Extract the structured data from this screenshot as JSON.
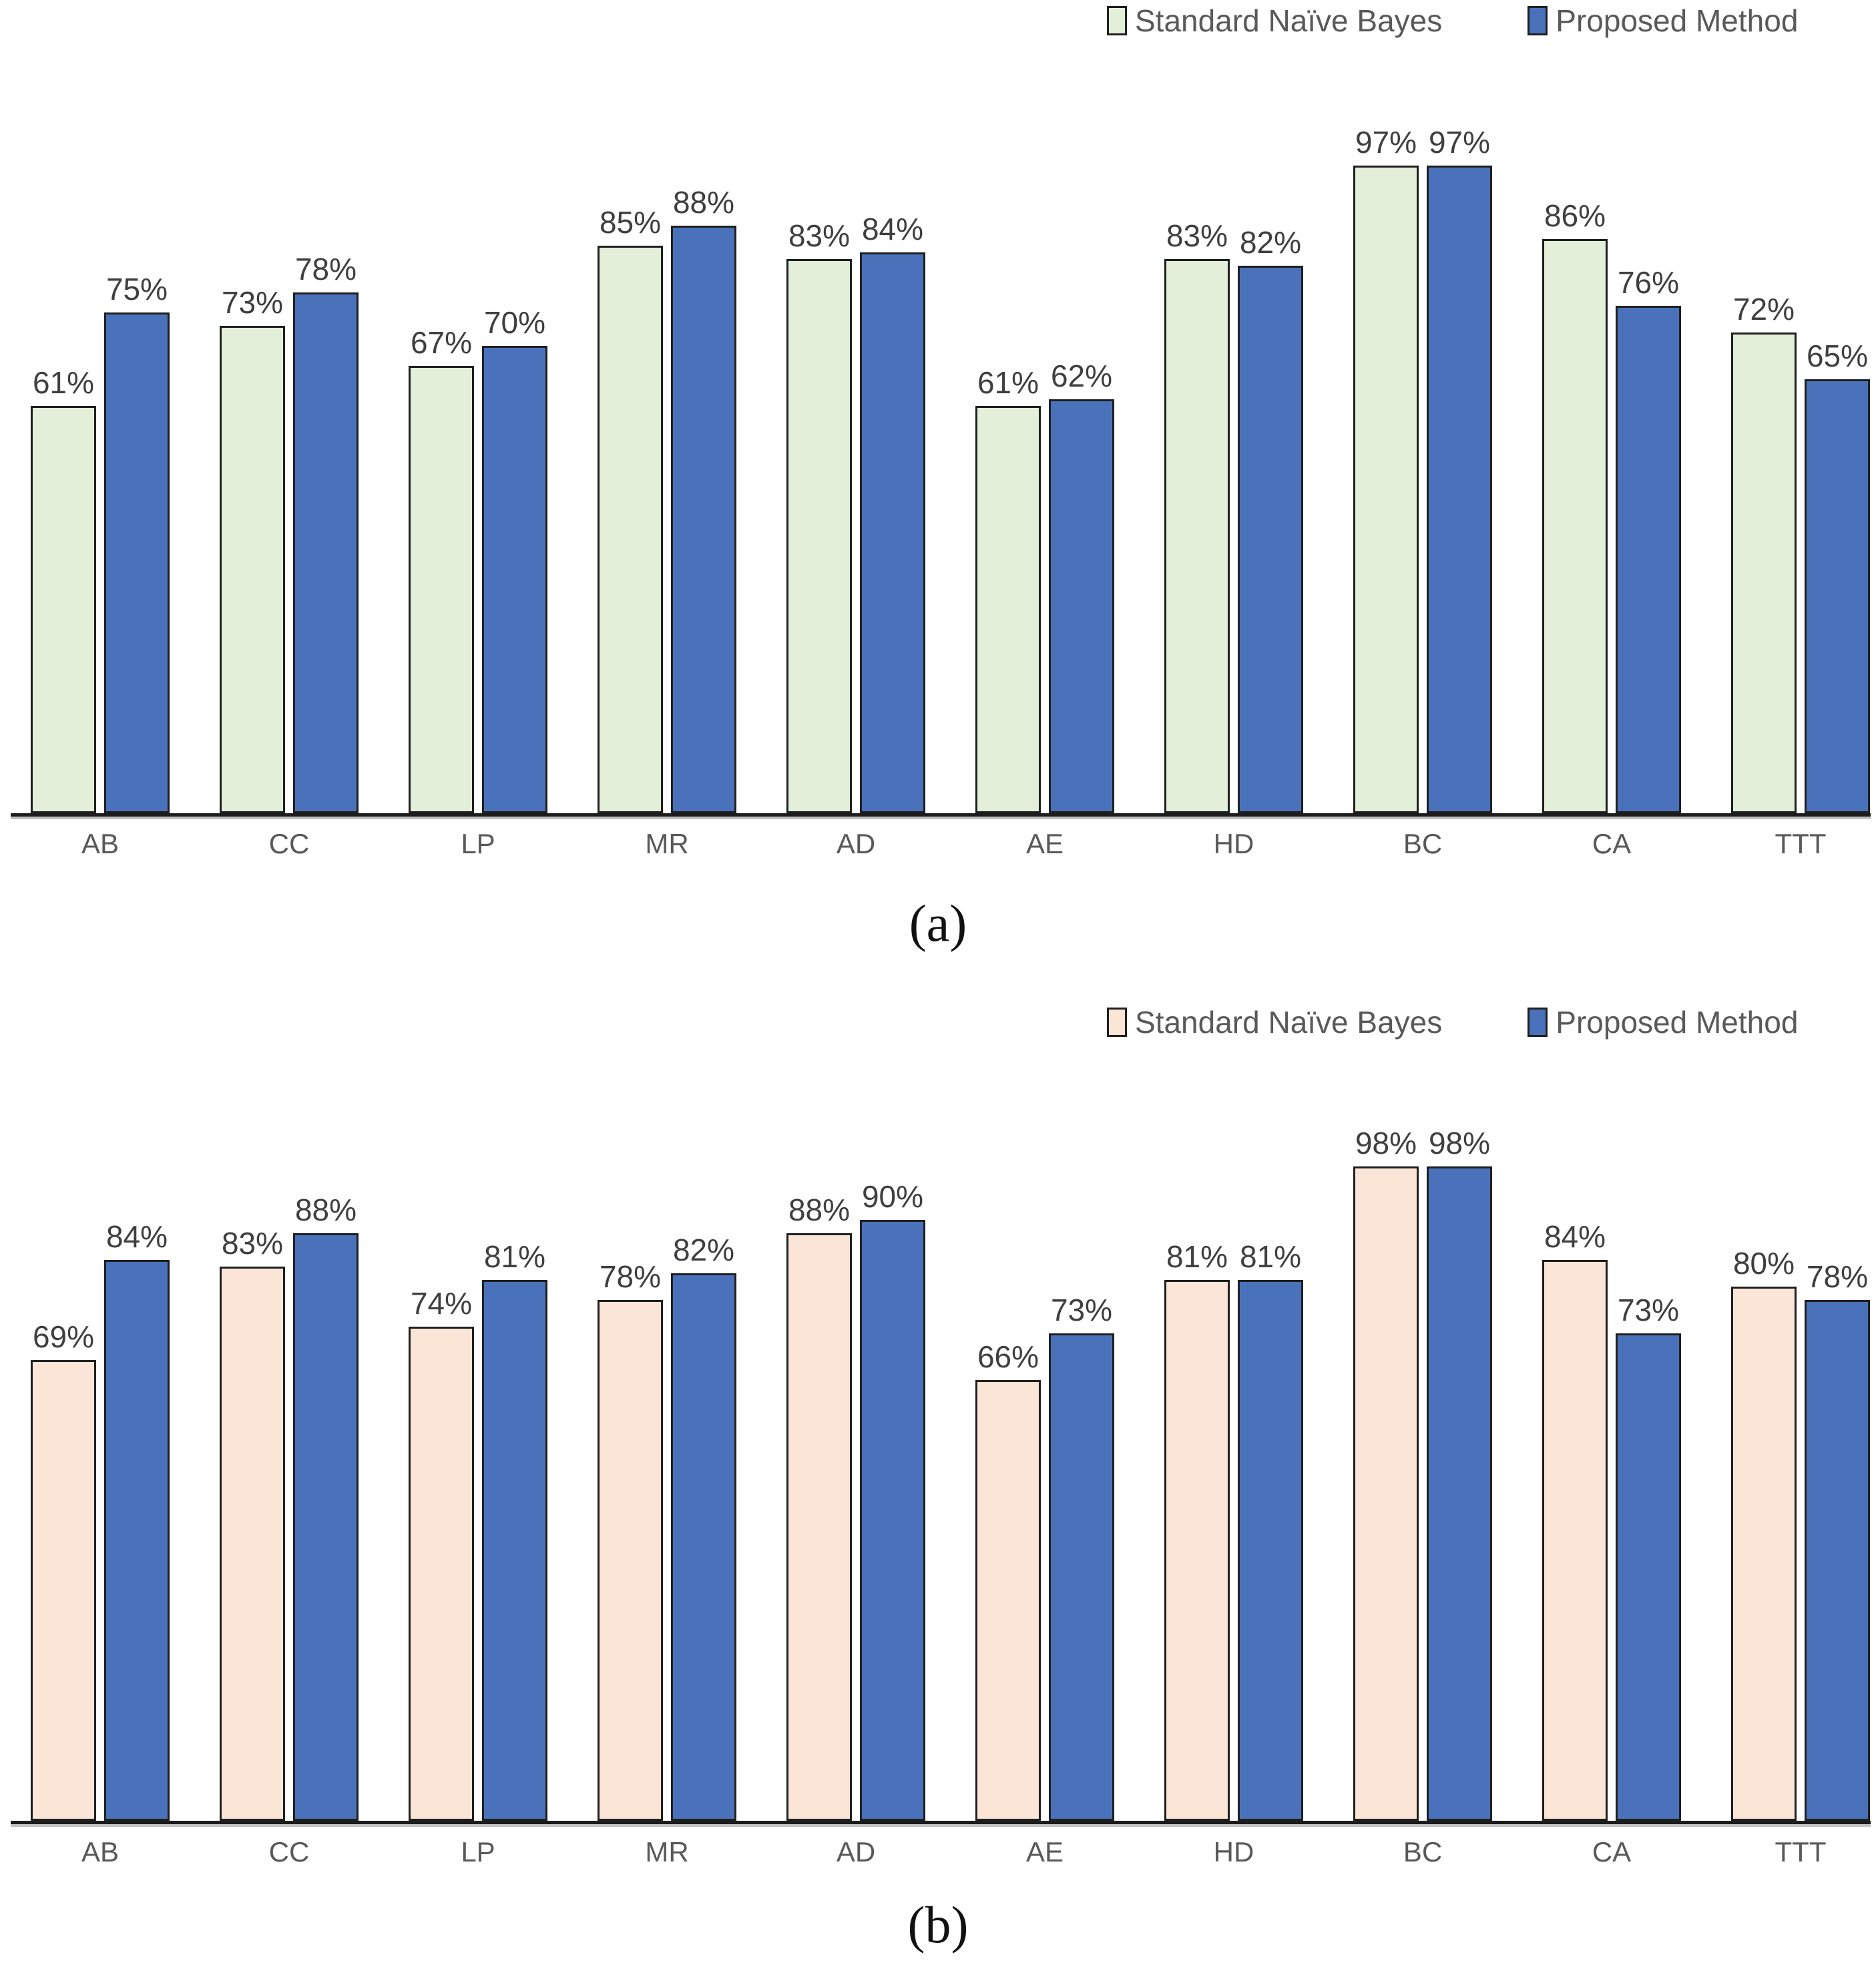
{
  "chart_data": [
    {
      "type": "bar",
      "panel": "(a)",
      "title": "",
      "xlabel": "",
      "ylabel": "",
      "ylim": [
        0,
        100
      ],
      "grid": false,
      "legend_position": "top-right",
      "value_suffix": "%",
      "categories": [
        "AB",
        "CC",
        "LP",
        "MR",
        "AD",
        "AE",
        "HD",
        "BC",
        "CA",
        "TTT"
      ],
      "series": [
        {
          "name": "Standard Naïve Bayes",
          "color": "#e3efd9",
          "values": [
            61,
            73,
            67,
            85,
            83,
            61,
            83,
            97,
            86,
            72
          ]
        },
        {
          "name": "Proposed Method",
          "color": "#4a72ba",
          "values": [
            75,
            78,
            70,
            88,
            84,
            62,
            82,
            97,
            76,
            65
          ]
        }
      ]
    },
    {
      "type": "bar",
      "panel": "(b)",
      "title": "",
      "xlabel": "",
      "ylabel": "",
      "ylim": [
        0,
        100
      ],
      "grid": false,
      "legend_position": "top-right",
      "value_suffix": "%",
      "categories": [
        "AB",
        "CC",
        "LP",
        "MR",
        "AD",
        "AE",
        "HD",
        "BC",
        "CA",
        "TTT"
      ],
      "series": [
        {
          "name": "Standard Naïve Bayes",
          "color": "#fbe5d7",
          "values": [
            69,
            83,
            74,
            78,
            88,
            66,
            81,
            98,
            84,
            80
          ]
        },
        {
          "name": "Proposed Method",
          "color": "#4a72ba",
          "values": [
            84,
            88,
            81,
            82,
            90,
            73,
            81,
            98,
            73,
            78
          ]
        }
      ]
    }
  ],
  "styles": {
    "axis_color": "#1c1c1c",
    "bar_border_color": "#1f1f1f",
    "value_label_color": "#3f3f3f",
    "category_label_color": "#595959",
    "legend_text_color": "#595959",
    "caption_color": "#111111"
  }
}
